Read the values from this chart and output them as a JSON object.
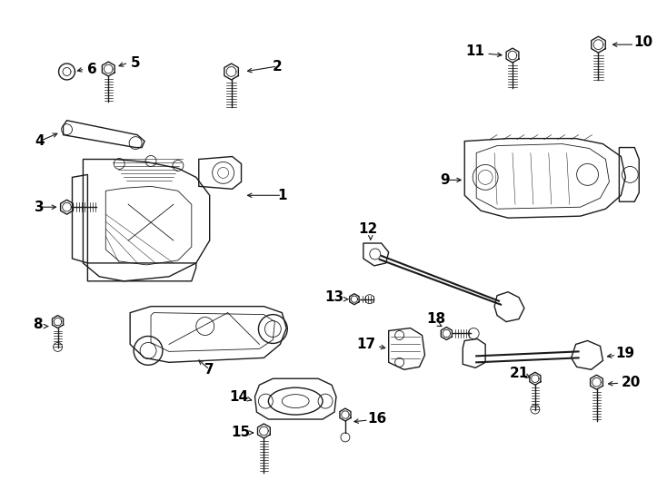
{
  "bg_color": "#ffffff",
  "line_color": "#1a1a1a",
  "label_color": "#000000",
  "label_fs": 10,
  "lw_main": 1.0,
  "lw_thin": 0.6,
  "lw_thick": 1.4
}
